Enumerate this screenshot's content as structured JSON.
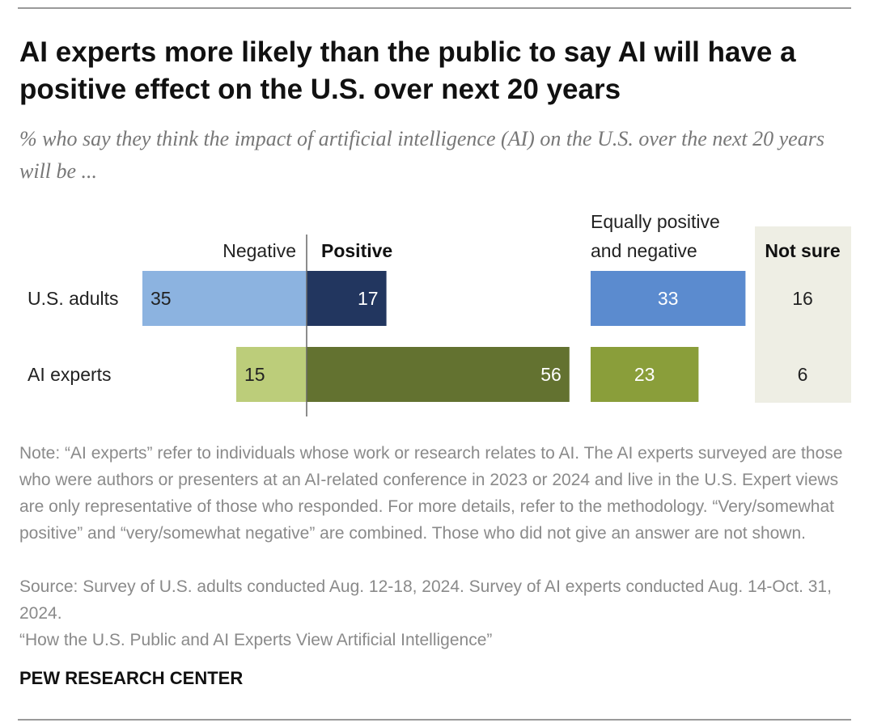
{
  "title": "AI experts more likely than the public to say AI will have a positive effect on the U.S. over next 20 years",
  "subtitle": "% who say they think the impact of artificial intelligence (AI) on the U.S. over the next 20 years will be ...",
  "chart_data": {
    "type": "bar",
    "categories": [
      "U.S. adults",
      "AI experts"
    ],
    "series": [
      {
        "name": "Negative",
        "values": [
          35,
          15
        ],
        "colors": [
          "#8cb3e0",
          "#bccd7a"
        ]
      },
      {
        "name": "Positive",
        "values": [
          17,
          56
        ],
        "colors": [
          "#22365f",
          "#637230"
        ]
      },
      {
        "name": "Equally positive and negative",
        "values": [
          33,
          23
        ],
        "colors": [
          "#5b8bcf",
          "#8a9e3a"
        ]
      },
      {
        "name": "Not sure",
        "values": [
          16,
          6
        ],
        "background": "#eeeee4"
      }
    ]
  },
  "headers": {
    "negative": "Negative",
    "positive": "Positive",
    "equal_line1": "Equally positive",
    "equal_line2": "and negative",
    "not_sure": "Not sure"
  },
  "notes": {
    "note": "Note: “AI experts” refer to individuals whose work or research relates to AI. The AI experts surveyed are those who were authors or presenters at an AI-related conference in 2023 or 2024 and live in the U.S. Expert views are only representative of those who responded. For more details, refer to the methodology. “Very/somewhat positive” and “very/somewhat negative” are combined. Those who did not give an answer are not shown.",
    "source": "Source: Survey of U.S. adults conducted Aug. 12-18, 2024. Survey of AI experts conducted Aug. 14-Oct. 31, 2024.",
    "report": "“How the U.S. Public and AI Experts View Artificial Intelligence”",
    "brand": "PEW RESEARCH CENTER"
  }
}
